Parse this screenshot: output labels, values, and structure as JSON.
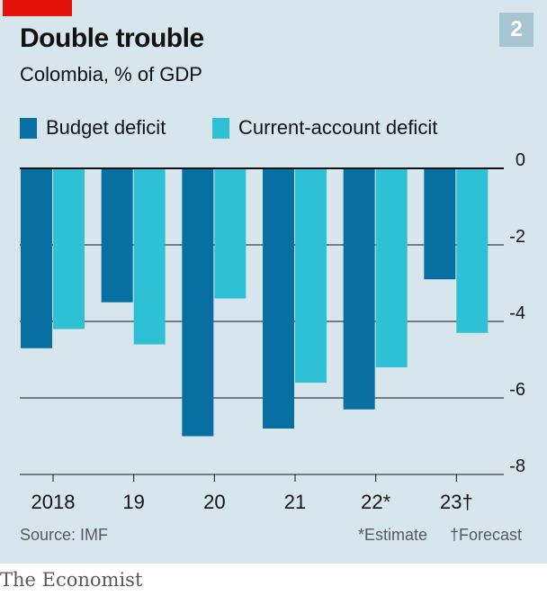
{
  "header": {
    "badge": "2",
    "title": "Double trouble",
    "subtitle": "Colombia, % of GDP"
  },
  "legend": {
    "items": [
      {
        "label": "Budget deficit",
        "color": "#076fa1"
      },
      {
        "label": "Current-account deficit",
        "color": "#2ec1d6"
      }
    ]
  },
  "footer": {
    "source": "Source: IMF",
    "note_estimate": "*Estimate",
    "note_forecast": "†Forecast",
    "brand": "The Economist"
  },
  "chart_data": {
    "type": "bar",
    "categories": [
      "2018",
      "19",
      "20",
      "21",
      "22*",
      "23†"
    ],
    "series": [
      {
        "name": "Budget deficit",
        "color": "#076fa1",
        "values": [
          -4.7,
          -3.5,
          -7.0,
          -6.8,
          -6.3,
          -2.9
        ]
      },
      {
        "name": "Current-account deficit",
        "color": "#2ec1d6",
        "values": [
          -4.2,
          -4.6,
          -3.4,
          -5.6,
          -5.2,
          -4.3
        ]
      }
    ],
    "ylim": [
      -8,
      0
    ],
    "yticks": [
      0,
      -2,
      -4,
      -6,
      -8
    ],
    "ytick_labels": [
      "0",
      "-2",
      "-4",
      "-6",
      "-8"
    ],
    "grid": true,
    "legend_position": "top-left"
  }
}
